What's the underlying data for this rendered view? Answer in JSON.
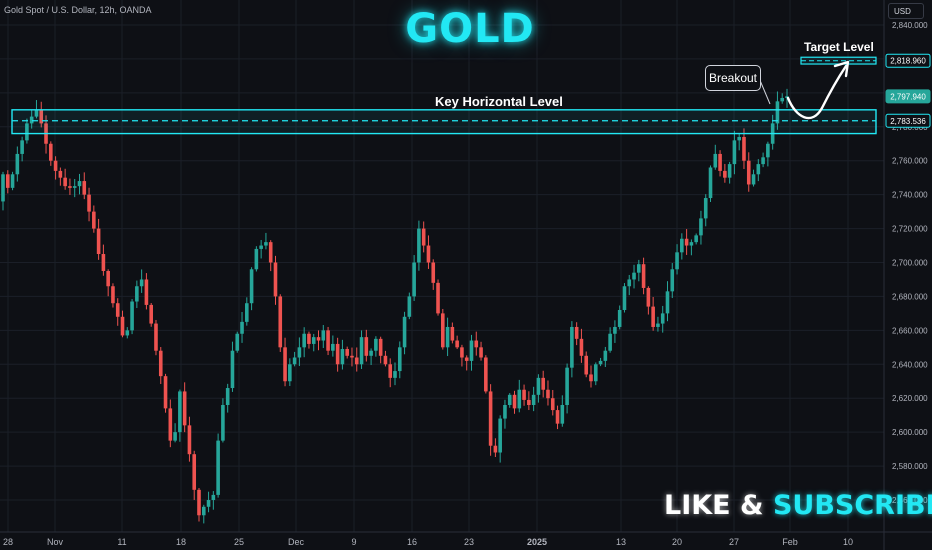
{
  "header": {
    "symbol_info": "Gold Spot / U.S. Dollar, 12h, OANDA",
    "currency": "USD"
  },
  "annotations": {
    "title": "GOLD",
    "key_level_label": "Key Horizontal Level",
    "target_level_label": "Target Level",
    "breakout_label": "Breakout",
    "subscribe_part1": "LIKE & ",
    "subscribe_part2": "SUBSCRIBE"
  },
  "colors": {
    "background": "#0e1015",
    "bull": "#26a69a",
    "bear": "#ef5350",
    "accent": "#22e8f4",
    "grid": "#1b1f28"
  },
  "chart_data": {
    "type": "candlestick",
    "ylim": [
      2540,
      2845
    ],
    "y_ticks": [
      "2,840.000",
      "2,820.000",
      "2,800.000",
      "2,780.000",
      "2,760.000",
      "2,740.000",
      "2,720.000",
      "2,700.000",
      "2,680.000",
      "2,660.000",
      "2,640.000",
      "2,620.000",
      "2,600.000",
      "2,580.000",
      "2,560.000"
    ],
    "y_tick_values": [
      2840,
      2820,
      2800,
      2780,
      2760,
      2740,
      2720,
      2700,
      2680,
      2660,
      2640,
      2620,
      2600,
      2580,
      2560
    ],
    "x_labels": [
      "28",
      "Nov",
      "11",
      "18",
      "25",
      "Dec",
      "9",
      "16",
      "23",
      "2025",
      "13",
      "20",
      "27",
      "Feb",
      "10"
    ],
    "price_labels": [
      {
        "text": "2,818.960",
        "value": 2818.96,
        "kind": "target"
      },
      {
        "text": "2,797.940",
        "value": 2797.94,
        "kind": "current"
      },
      {
        "text": "2,783.536",
        "value": 2783.536,
        "kind": "key"
      }
    ],
    "key_zone": {
      "low": 2776,
      "high": 2790,
      "level": 2783.536
    },
    "target_zone": {
      "low": 2817,
      "high": 2821,
      "level": 2818.96
    },
    "closes": [
      2752,
      2744,
      2752,
      2764,
      2772,
      2782,
      2786,
      2790,
      2782,
      2770,
      2760,
      2754,
      2750,
      2745,
      2744,
      2745,
      2748,
      2740,
      2730,
      2720,
      2705,
      2695,
      2686,
      2676,
      2668,
      2657,
      2660,
      2677,
      2686,
      2690,
      2675,
      2664,
      2648,
      2633,
      2614,
      2595,
      2600,
      2624,
      2604,
      2587,
      2566,
      2551,
      2556,
      2560,
      2563,
      2595,
      2616,
      2626,
      2648,
      2658,
      2665,
      2676,
      2696,
      2708,
      2710,
      2712,
      2700,
      2680,
      2650,
      2630,
      2640,
      2644,
      2650,
      2658,
      2652,
      2656,
      2654,
      2660,
      2648,
      2652,
      2640,
      2649,
      2645,
      2644,
      2640,
      2656,
      2645,
      2648,
      2655,
      2645,
      2640,
      2632,
      2636,
      2650,
      2668,
      2680,
      2700,
      2720,
      2710,
      2700,
      2688,
      2670,
      2650,
      2662,
      2654,
      2650,
      2644,
      2642,
      2654,
      2650,
      2644,
      2624,
      2592,
      2588,
      2608,
      2616,
      2622,
      2614,
      2625,
      2619,
      2616,
      2622,
      2632,
      2625,
      2620,
      2613,
      2605,
      2616,
      2638,
      2662,
      2655,
      2645,
      2634,
      2630,
      2640,
      2642,
      2648,
      2658,
      2662,
      2672,
      2686,
      2690,
      2694,
      2699,
      2685,
      2674,
      2662,
      2664,
      2670,
      2683,
      2696,
      2706,
      2714,
      2710,
      2712,
      2716,
      2726,
      2738,
      2756,
      2764,
      2754,
      2750,
      2758,
      2772,
      2774,
      2760,
      2746,
      2752,
      2758,
      2762,
      2770,
      2782,
      2795,
      2797,
      2798
    ]
  }
}
